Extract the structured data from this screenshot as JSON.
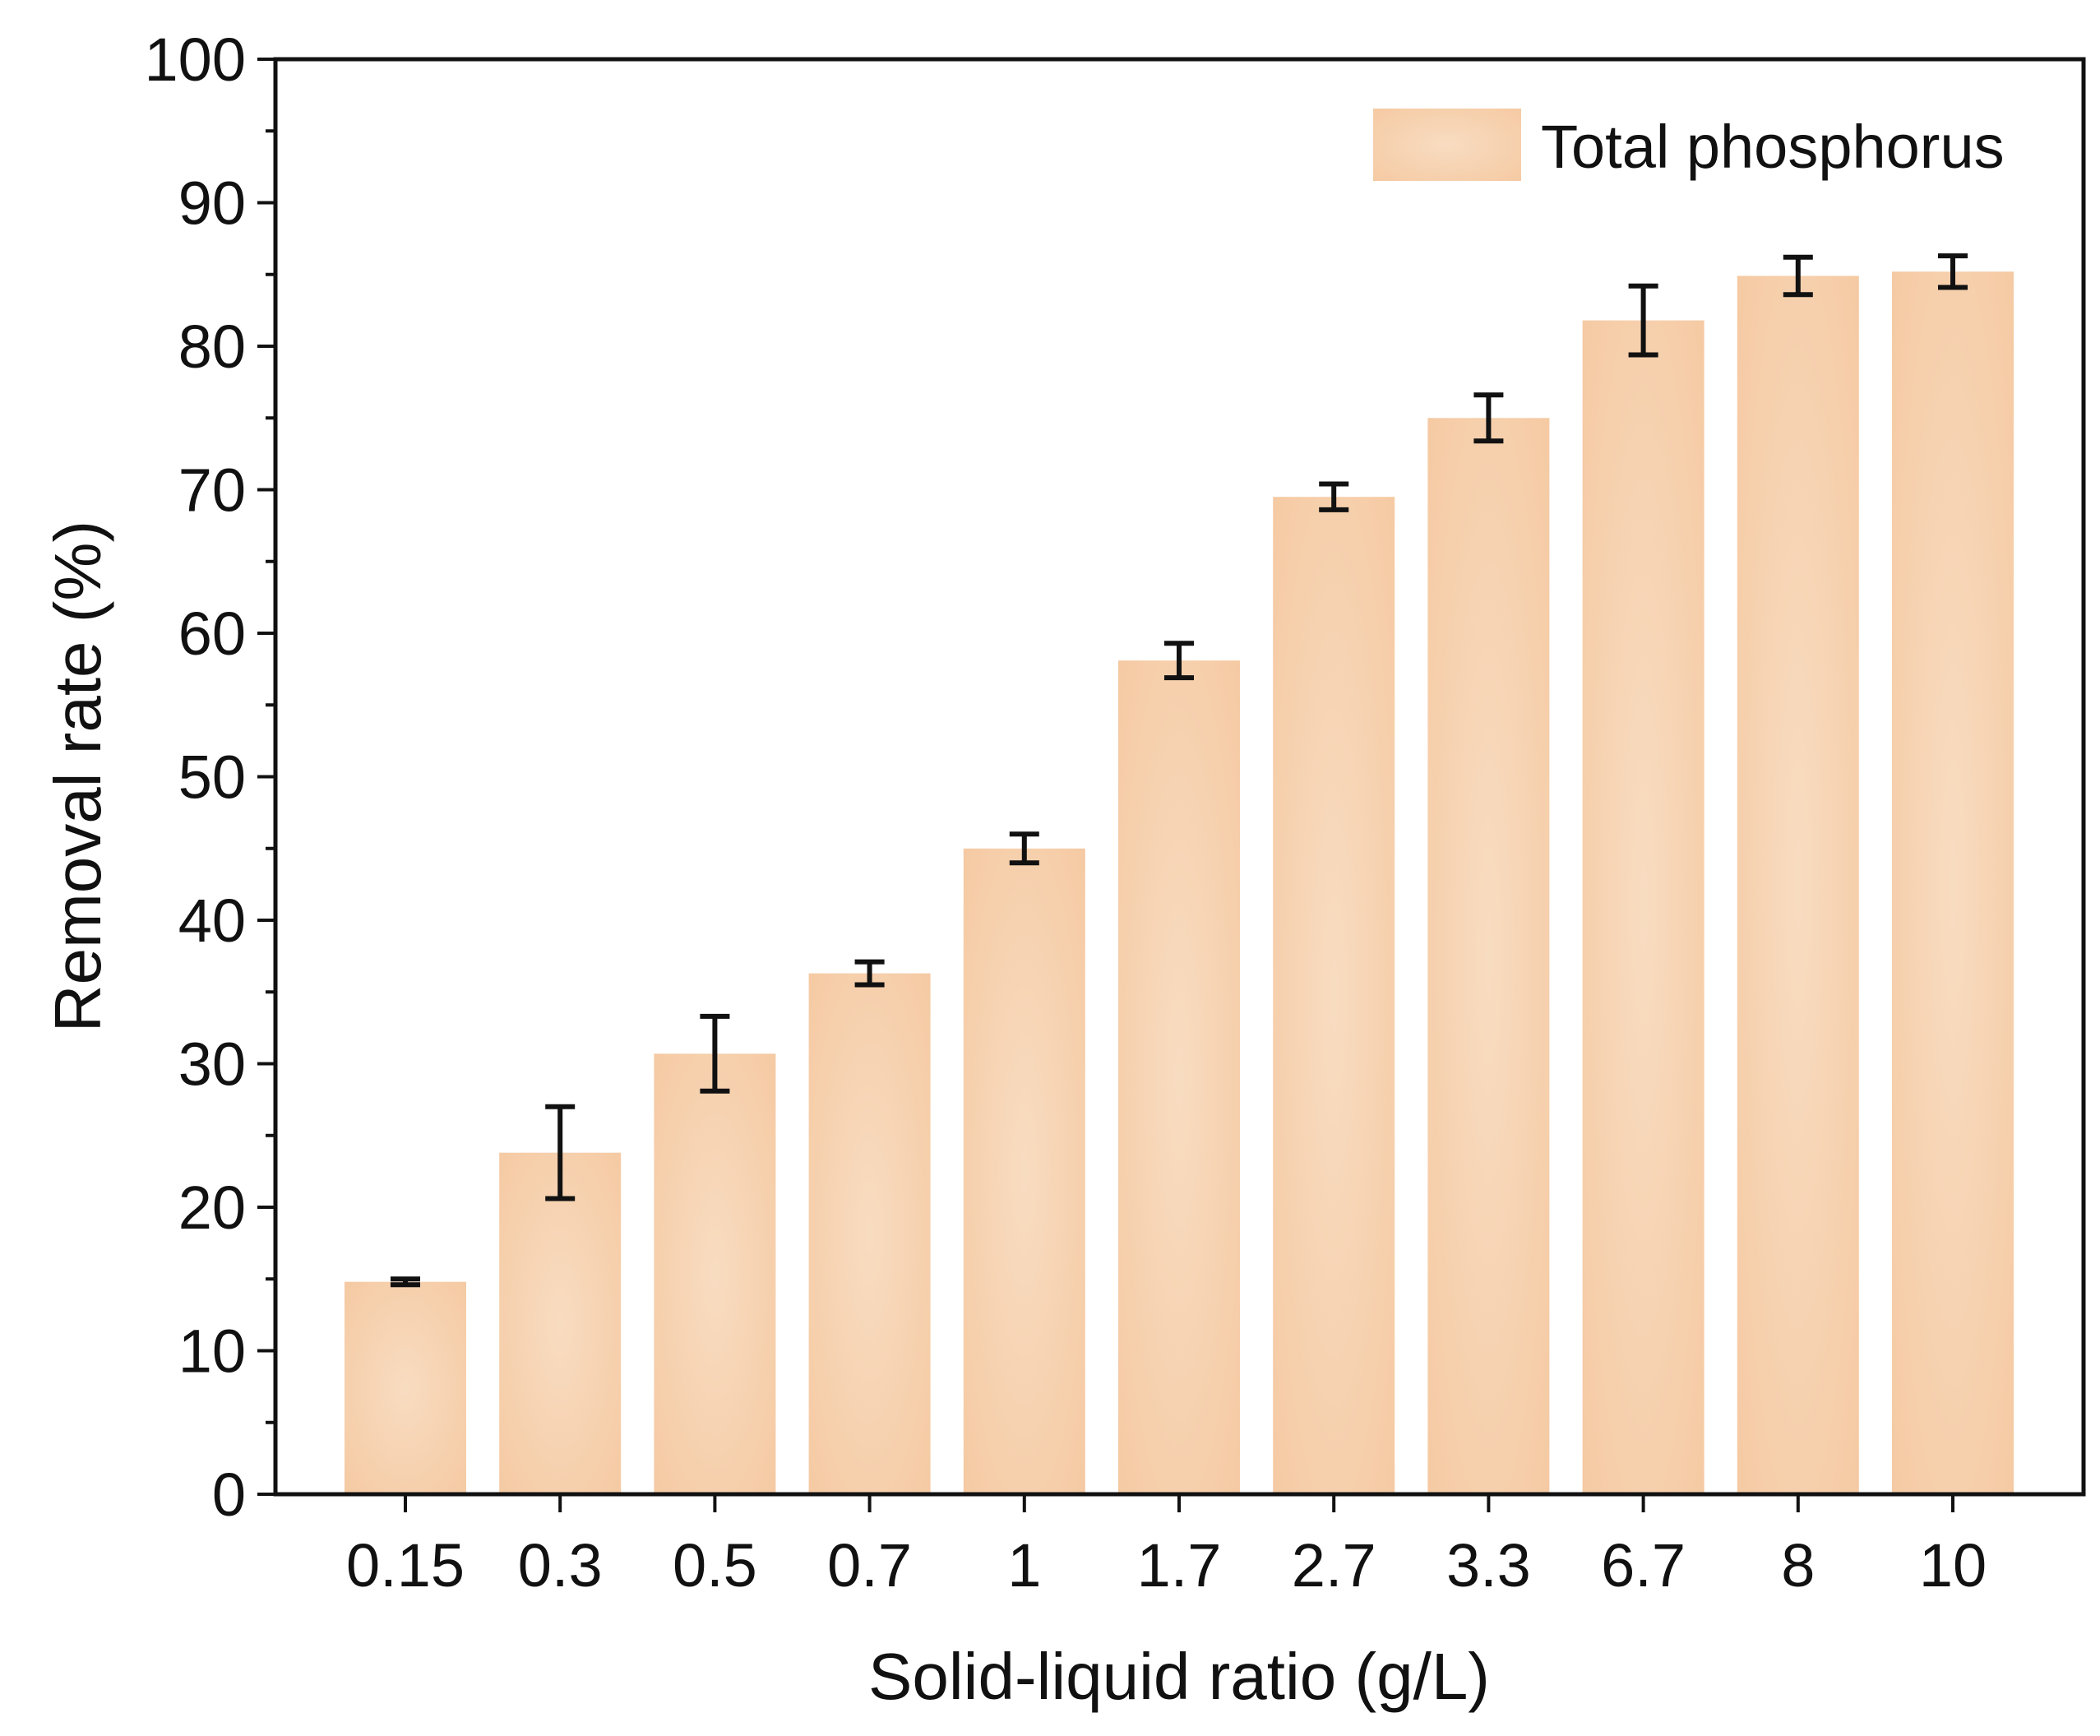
{
  "chart_data": {
    "type": "bar",
    "title": "",
    "xlabel": "Solid-liquid ratio (g/L)",
    "ylabel": "Removal  rate (%)",
    "categories": [
      "0.15",
      "0.3",
      "0.5",
      "0.7",
      "1",
      "1.7",
      "2.7",
      "3.3",
      "6.7",
      "8",
      "10"
    ],
    "series": [
      {
        "name": "Total phosphorus",
        "values": [
          14.8,
          23.8,
          30.7,
          36.3,
          45.0,
          58.1,
          69.5,
          75.0,
          81.8,
          84.9,
          85.2
        ],
        "errors": [
          0.2,
          3.2,
          2.6,
          0.8,
          1.0,
          1.2,
          0.9,
          1.6,
          2.4,
          1.3,
          1.1
        ],
        "color": "#f5caa3",
        "color_light": "#f8dcc1"
      }
    ],
    "ylim": [
      0,
      100
    ],
    "yticks": [
      0,
      10,
      20,
      30,
      40,
      50,
      60,
      70,
      80,
      90,
      100
    ],
    "ytick_labels": [
      "0",
      "10",
      "20",
      "30",
      "40",
      "50",
      "60",
      "70",
      "80",
      "90",
      "100"
    ],
    "grid": false,
    "legend": {
      "position": "top-right",
      "entries": [
        "Total phosphorus"
      ]
    }
  }
}
